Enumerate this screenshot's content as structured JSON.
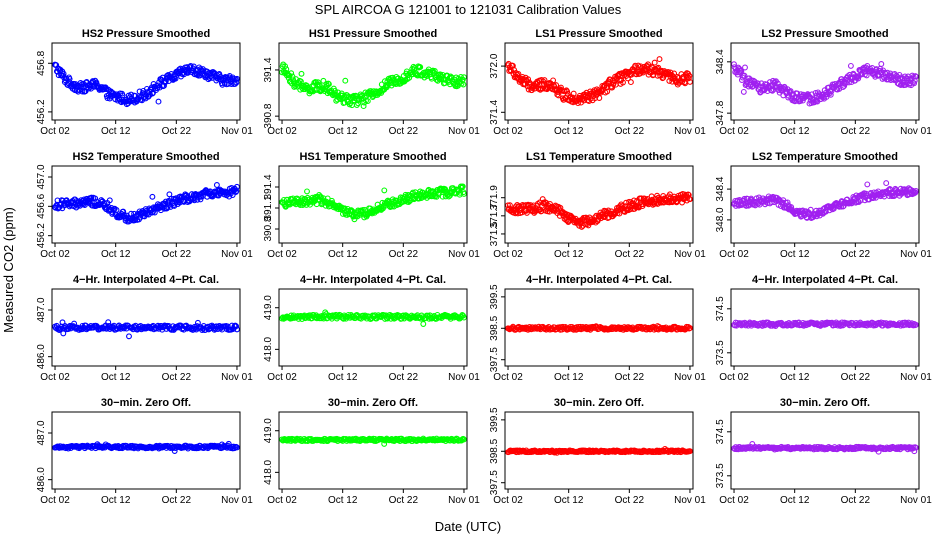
{
  "chart_data": {
    "type": "scatter",
    "title": "SPL   AIRCOA G   121001 to 121031   Calibration Values",
    "xlabel": "Date (UTC)",
    "ylabel": "Measured CO2 (ppm)",
    "x_ticks": [
      "Oct 02",
      "Oct 12",
      "Oct 22",
      "Nov 01"
    ],
    "x_tick_days": [
      1,
      11,
      21,
      31
    ],
    "xlim": [
      0.5,
      31.5
    ],
    "colors": {
      "HS2": "#0000ff",
      "HS1": "#00ff00",
      "LS1": "#ff0000",
      "LS2": "#a020f0"
    },
    "panels": [
      {
        "row": 0,
        "col": 0,
        "tank": "HS2",
        "title": "HS2 Pressure Smoothed",
        "ylim": [
          456.1,
          457.05
        ],
        "yticks": [
          "456.2",
          "456.8"
        ],
        "ytick_values": [
          456.2,
          456.8
        ],
        "pattern": "pressure",
        "base": 456.56,
        "amp": 0.22,
        "noise": 0.06
      },
      {
        "row": 0,
        "col": 1,
        "tank": "HS1",
        "title": "HS1 Pressure Smoothed",
        "ylim": [
          390.75,
          391.75
        ],
        "yticks": [
          "390.8",
          "391.4"
        ],
        "ytick_values": [
          390.8,
          391.4
        ],
        "pattern": "pressure",
        "base": 391.22,
        "amp": 0.23,
        "noise": 0.07
      },
      {
        "row": 0,
        "col": 2,
        "tank": "LS1",
        "title": "LS1 Pressure Smoothed",
        "ylim": [
          371.3,
          372.3
        ],
        "yticks": [
          "371.4",
          "372.0"
        ],
        "ytick_values": [
          371.4,
          372.0
        ],
        "pattern": "pressure",
        "base": 371.8,
        "amp": 0.24,
        "noise": 0.07
      },
      {
        "row": 0,
        "col": 3,
        "tank": "LS2",
        "title": "LS2 Pressure Smoothed",
        "ylim": [
          347.72,
          348.62
        ],
        "yticks": [
          "347.8",
          "348.4"
        ],
        "ytick_values": [
          347.8,
          348.4
        ],
        "pattern": "pressure",
        "base": 348.15,
        "amp": 0.2,
        "noise": 0.06
      },
      {
        "row": 1,
        "col": 0,
        "tank": "HS2",
        "title": "HS2 Temperature Smoothed",
        "ylim": [
          456.1,
          457.15
        ],
        "yticks": [
          "456.2",
          "456.6",
          "457.0"
        ],
        "ytick_values": [
          456.2,
          456.6,
          457.0
        ],
        "pattern": "temperature",
        "base": 456.6,
        "amp": 0.22,
        "noise": 0.06
      },
      {
        "row": 1,
        "col": 1,
        "tank": "HS1",
        "title": "HS1 Temperature Smoothed",
        "ylim": [
          390.6,
          391.7
        ],
        "yticks": [
          "390.8",
          "391.1",
          "391.4"
        ],
        "ytick_values": [
          390.8,
          391.1,
          391.4
        ],
        "pattern": "temperature",
        "base": 391.15,
        "amp": 0.22,
        "noise": 0.06
      },
      {
        "row": 1,
        "col": 2,
        "tank": "LS1",
        "title": "LS1 Temperature Smoothed",
        "ylim": [
          371.4,
          372.25
        ],
        "yticks": [
          "371.5",
          "371.7",
          "371.9"
        ],
        "ytick_values": [
          371.5,
          371.7,
          371.9
        ],
        "pattern": "temperature",
        "base": 371.75,
        "amp": 0.18,
        "noise": 0.05
      },
      {
        "row": 1,
        "col": 3,
        "tank": "LS2",
        "title": "LS2 Temperature Smoothed",
        "ylim": [
          347.7,
          348.7
        ],
        "yticks": [
          "348.0",
          "348.4"
        ],
        "ytick_values": [
          348.0,
          348.4
        ],
        "pattern": "temperature",
        "base": 348.2,
        "amp": 0.2,
        "noise": 0.05
      },
      {
        "row": 2,
        "col": 0,
        "tank": "HS2",
        "title": "4−Hr. Interpolated 4−Pt. Cal.",
        "ylim": [
          485.8,
          487.45
        ],
        "yticks": [
          "486.0",
          "487.0"
        ],
        "ytick_values": [
          486.0,
          487.0
        ],
        "pattern": "flat",
        "base": 486.62,
        "amp": 0,
        "noise": 0.05
      },
      {
        "row": 2,
        "col": 1,
        "tank": "HS1",
        "title": "4−Hr. Interpolated 4−Pt. Cal.",
        "ylim": [
          417.6,
          419.45
        ],
        "yticks": [
          "418.0",
          "419.0"
        ],
        "ytick_values": [
          418.0,
          419.0
        ],
        "pattern": "flat",
        "base": 418.78,
        "amp": 0,
        "noise": 0.05
      },
      {
        "row": 2,
        "col": 2,
        "tank": "LS1",
        "title": "4−Hr. Interpolated 4−Pt. Cal.",
        "ylim": [
          397.3,
          399.75
        ],
        "yticks": [
          "397.5",
          "398.5",
          "399.5"
        ],
        "ytick_values": [
          397.5,
          398.5,
          399.5
        ],
        "pattern": "flat",
        "base": 398.5,
        "amp": 0,
        "noise": 0.05
      },
      {
        "row": 2,
        "col": 3,
        "tank": "LS2",
        "title": "4−Hr. Interpolated 4−Pt. Cal.",
        "ylim": [
          373.2,
          374.95
        ],
        "yticks": [
          "373.5",
          "374.5"
        ],
        "ytick_values": [
          373.5,
          374.5
        ],
        "pattern": "flat",
        "base": 374.15,
        "amp": 0,
        "noise": 0.04
      },
      {
        "row": 3,
        "col": 0,
        "tank": "HS2",
        "title": "30−min. Zero Off.",
        "ylim": [
          485.8,
          487.45
        ],
        "yticks": [
          "486.0",
          "487.0"
        ],
        "ytick_values": [
          486.0,
          487.0
        ],
        "pattern": "flat",
        "base": 486.7,
        "amp": 0,
        "noise": 0.03
      },
      {
        "row": 3,
        "col": 1,
        "tank": "HS1",
        "title": "30−min. Zero Off.",
        "ylim": [
          417.6,
          419.45
        ],
        "yticks": [
          "418.0",
          "419.0"
        ],
        "ytick_values": [
          418.0,
          419.0
        ],
        "pattern": "flat",
        "base": 418.78,
        "amp": 0,
        "noise": 0.03
      },
      {
        "row": 3,
        "col": 2,
        "tank": "LS1",
        "title": "30−min. Zero Off.",
        "ylim": [
          397.3,
          399.75
        ],
        "yticks": [
          "397.5",
          "398.5",
          "399.5"
        ],
        "ytick_values": [
          397.5,
          398.5,
          399.5
        ],
        "pattern": "flat",
        "base": 398.5,
        "amp": 0,
        "noise": 0.03
      },
      {
        "row": 3,
        "col": 3,
        "tank": "LS2",
        "title": "30−min. Zero Off.",
        "ylim": [
          373.2,
          374.95
        ],
        "yticks": [
          "373.5",
          "374.5"
        ],
        "ytick_values": [
          373.5,
          374.5
        ],
        "pattern": "flat",
        "base": 374.13,
        "amp": 0,
        "noise": 0.03
      }
    ]
  }
}
